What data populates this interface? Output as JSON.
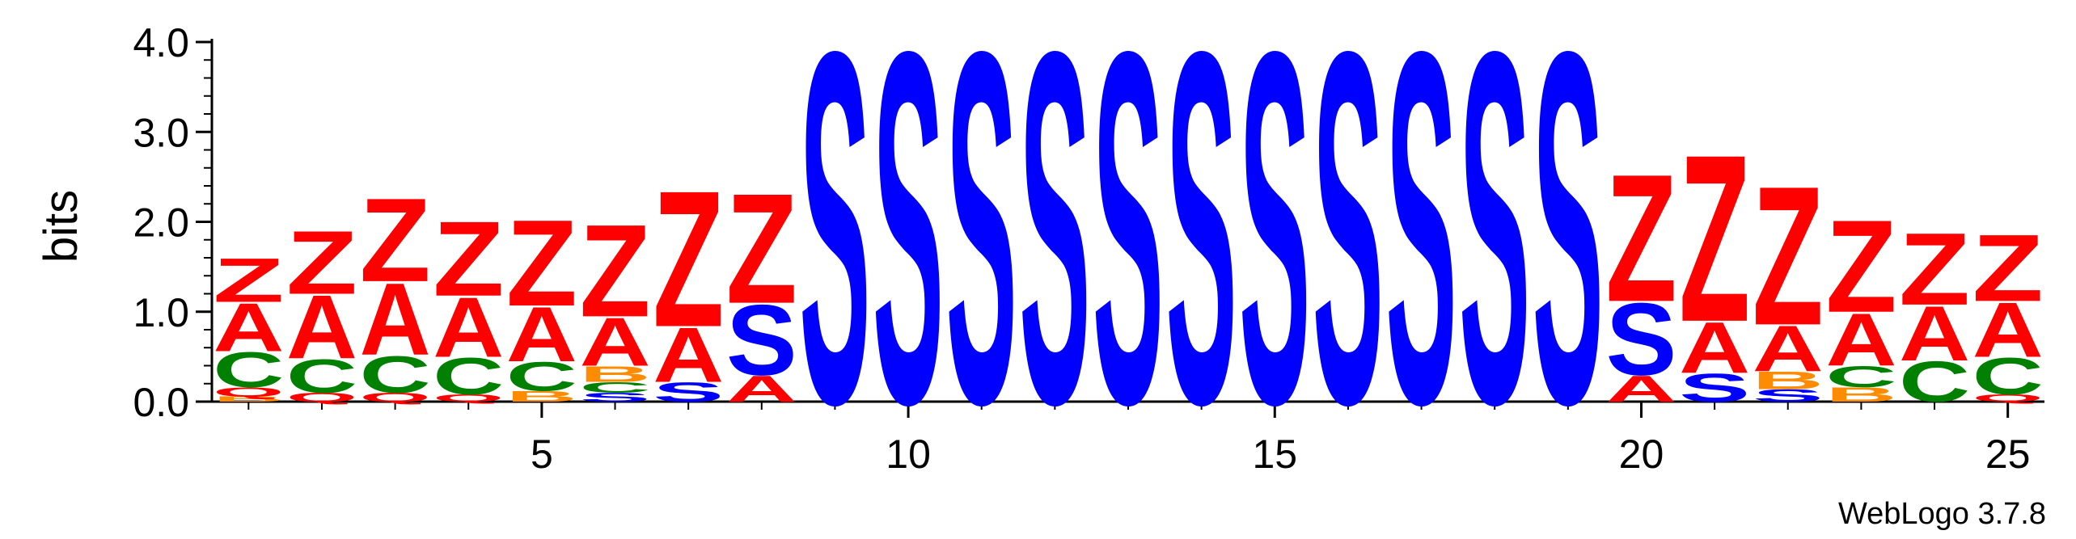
{
  "chart_data": {
    "type": "sequence-logo",
    "ylabel": "bits",
    "ylim": [
      0,
      4.0
    ],
    "y_ticks": [
      {
        "value": 0.0,
        "label": "0.0"
      },
      {
        "value": 1.0,
        "label": "1.0"
      },
      {
        "value": 2.0,
        "label": "2.0"
      },
      {
        "value": 3.0,
        "label": "3.0"
      },
      {
        "value": 4.0,
        "label": "4.0"
      }
    ],
    "x_ticks": [
      {
        "value": 5,
        "label": "5"
      },
      {
        "value": 10,
        "label": "10"
      },
      {
        "value": 15,
        "label": "15"
      },
      {
        "value": 20,
        "label": "20"
      },
      {
        "value": 25,
        "label": "25"
      }
    ],
    "positions": [
      1,
      2,
      3,
      4,
      5,
      6,
      7,
      8,
      9,
      10,
      11,
      12,
      13,
      14,
      15,
      16,
      17,
      18,
      19,
      20,
      21,
      22,
      23,
      24,
      25
    ],
    "colors": {
      "Z": "#ff0000",
      "A": "#ff0000",
      "S": "#0000ff",
      "C": "#008000",
      "B": "#ff8c00",
      "Q": "#ff0000"
    },
    "stacks": [
      [
        {
          "letter": "B",
          "bits": 0.06
        },
        {
          "letter": "Q",
          "bits": 0.1
        },
        {
          "letter": "C",
          "bits": 0.4
        },
        {
          "letter": "A",
          "bits": 0.55
        },
        {
          "letter": "Z",
          "bits": 0.5
        }
      ],
      [
        {
          "letter": "Q",
          "bits": 0.1
        },
        {
          "letter": "C",
          "bits": 0.38
        },
        {
          "letter": "A",
          "bits": 0.72
        },
        {
          "letter": "Z",
          "bits": 0.72
        }
      ],
      [
        {
          "letter": "Q",
          "bits": 0.1
        },
        {
          "letter": "C",
          "bits": 0.42
        },
        {
          "letter": "A",
          "bits": 0.82
        },
        {
          "letter": "Z",
          "bits": 0.95
        }
      ],
      [
        {
          "letter": "Q",
          "bits": 0.08
        },
        {
          "letter": "C",
          "bits": 0.42
        },
        {
          "letter": "A",
          "bits": 0.68
        },
        {
          "letter": "Z",
          "bits": 0.85
        }
      ],
      [
        {
          "letter": "B",
          "bits": 0.12
        },
        {
          "letter": "C",
          "bits": 0.33
        },
        {
          "letter": "A",
          "bits": 0.62
        },
        {
          "letter": "Z",
          "bits": 0.98
        }
      ],
      [
        {
          "letter": "S",
          "bits": 0.1
        },
        {
          "letter": "C",
          "bits": 0.12
        },
        {
          "letter": "B",
          "bits": 0.18
        },
        {
          "letter": "A",
          "bits": 0.55
        },
        {
          "letter": "Z",
          "bits": 1.05
        }
      ],
      [
        {
          "letter": "S",
          "bits": 0.22
        },
        {
          "letter": "A",
          "bits": 0.62
        },
        {
          "letter": "Z",
          "bits": 1.55
        }
      ],
      [
        {
          "letter": "A",
          "bits": 0.3
        },
        {
          "letter": "S",
          "bits": 0.8
        },
        {
          "letter": "Z",
          "bits": 1.25
        }
      ],
      [
        {
          "letter": "S",
          "bits": 4.0
        }
      ],
      [
        {
          "letter": "S",
          "bits": 4.0
        }
      ],
      [
        {
          "letter": "S",
          "bits": 4.0
        }
      ],
      [
        {
          "letter": "S",
          "bits": 4.0
        }
      ],
      [
        {
          "letter": "S",
          "bits": 4.0
        }
      ],
      [
        {
          "letter": "S",
          "bits": 4.0
        }
      ],
      [
        {
          "letter": "S",
          "bits": 4.0
        }
      ],
      [
        {
          "letter": "S",
          "bits": 4.0
        }
      ],
      [
        {
          "letter": "S",
          "bits": 4.0
        }
      ],
      [
        {
          "letter": "S",
          "bits": 4.0
        }
      ],
      [
        {
          "letter": "S",
          "bits": 4.0
        }
      ],
      [
        {
          "letter": "A",
          "bits": 0.3
        },
        {
          "letter": "S",
          "bits": 0.82
        },
        {
          "letter": "Z",
          "bits": 1.45
        }
      ],
      [
        {
          "letter": "S",
          "bits": 0.32
        },
        {
          "letter": "A",
          "bits": 0.58
        },
        {
          "letter": "Z",
          "bits": 1.9
        }
      ],
      [
        {
          "letter": "S",
          "bits": 0.14
        },
        {
          "letter": "B",
          "bits": 0.2
        },
        {
          "letter": "A",
          "bits": 0.52
        },
        {
          "letter": "Z",
          "bits": 1.58
        }
      ],
      [
        {
          "letter": "B",
          "bits": 0.16
        },
        {
          "letter": "C",
          "bits": 0.24
        },
        {
          "letter": "A",
          "bits": 0.6
        },
        {
          "letter": "Z",
          "bits": 1.05
        }
      ],
      [
        {
          "letter": "C",
          "bits": 0.46
        },
        {
          "letter": "A",
          "bits": 0.62
        },
        {
          "letter": "Z",
          "bits": 0.82
        }
      ],
      [
        {
          "letter": "Q",
          "bits": 0.08
        },
        {
          "letter": "C",
          "bits": 0.42
        },
        {
          "letter": "A",
          "bits": 0.62
        },
        {
          "letter": "Z",
          "bits": 0.76
        }
      ]
    ]
  },
  "credit": "WebLogo 3.7.8"
}
